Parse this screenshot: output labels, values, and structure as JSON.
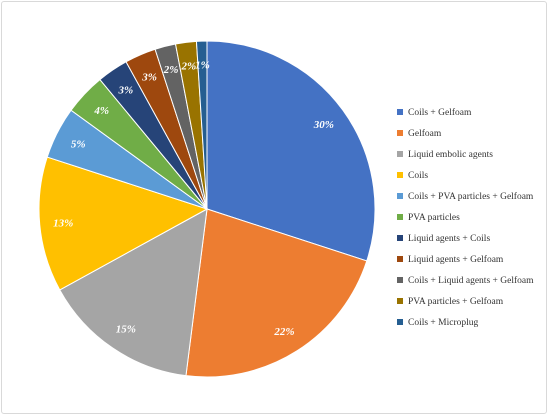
{
  "chart_data": {
    "type": "pie",
    "categories": [
      "Coils + Gelfoam",
      "Gelfoam",
      "Liquid embolic agents",
      "Coils",
      "Coils + PVA particles + Gelfoam",
      "PVA particles",
      "Liquid agents + Coils",
      "Liquid agents + Gelfoam",
      "Coils + Liquid agents + Gelfoam",
      "PVA particles + Gelfoam",
      "Coils + Microplug"
    ],
    "values": [
      30,
      22,
      15,
      13,
      5,
      4,
      3,
      3,
      2,
      2,
      1
    ],
    "labels": [
      "30%",
      "22%",
      "15%",
      "13%",
      "5%",
      "4%",
      "3%",
      "3%",
      "2%",
      "2%",
      "1%"
    ],
    "colors": [
      "#4472c4",
      "#ed7d31",
      "#a5a5a5",
      "#ffc000",
      "#5b9bd5",
      "#70ad47",
      "#264478",
      "#9e480e",
      "#636363",
      "#997300",
      "#255e91"
    ],
    "title": "",
    "legend_position": "right"
  }
}
